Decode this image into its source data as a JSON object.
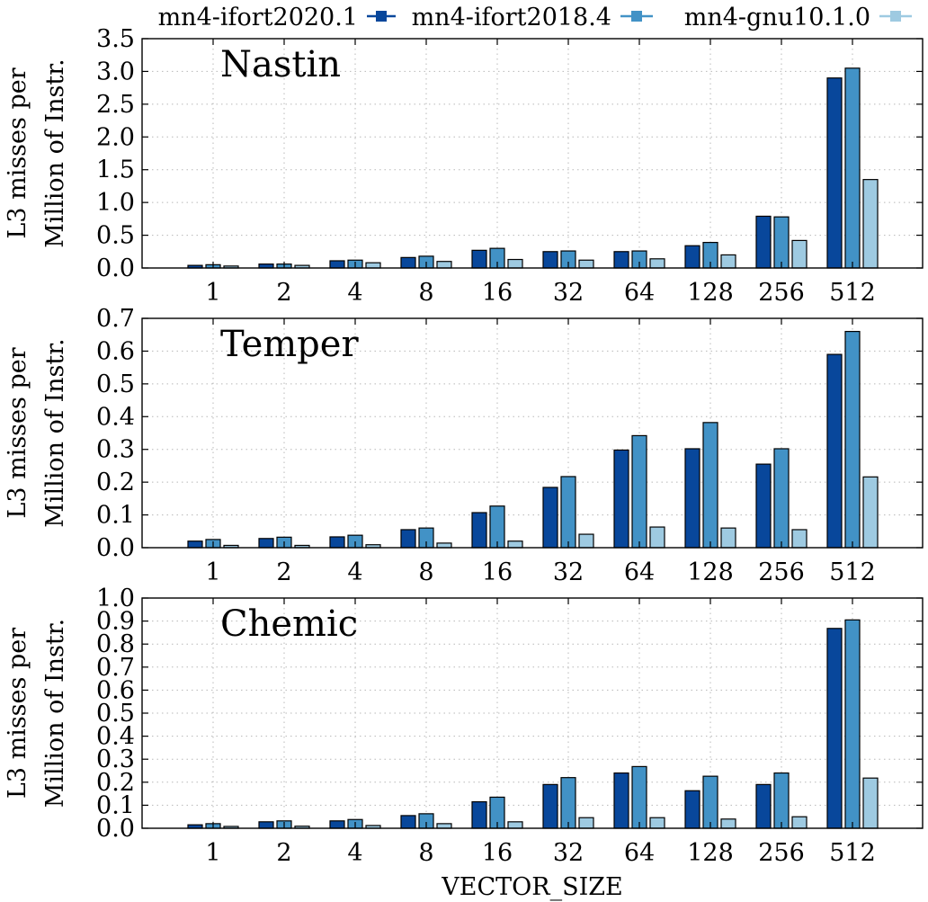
{
  "chart_data": {
    "type": "bar",
    "xlabel": "VECTOR_SIZE",
    "ylabel": [
      "L3 misses per",
      "Million of Instr."
    ],
    "categories": [
      "1",
      "2",
      "4",
      "8",
      "16",
      "32",
      "64",
      "128",
      "256",
      "512"
    ],
    "legend": {
      "placement": "top",
      "entries": [
        {
          "name": "mn4-ifort2020.1",
          "color": "#08479b"
        },
        {
          "name": "mn4-ifort2018.4",
          "color": "#4292c6"
        },
        {
          "name": "mn4-gnu10.1.0",
          "color": "#9ecae1"
        }
      ]
    },
    "panels": [
      {
        "title": "Nastin",
        "ylim": [
          0,
          3.5
        ],
        "yticks": [
          "0.0",
          "0.5",
          "1.0",
          "1.5",
          "2.0",
          "2.5",
          "3.0",
          "3.5"
        ],
        "series": [
          {
            "name": "mn4-ifort2020.1",
            "values": [
              0.04,
              0.06,
              0.11,
              0.16,
              0.27,
              0.25,
              0.25,
              0.34,
              0.79,
              2.9
            ]
          },
          {
            "name": "mn4-ifort2018.4",
            "values": [
              0.05,
              0.06,
              0.12,
              0.18,
              0.3,
              0.26,
              0.26,
              0.39,
              0.78,
              3.05
            ]
          },
          {
            "name": "mn4-gnu10.1.0",
            "values": [
              0.03,
              0.04,
              0.08,
              0.1,
              0.13,
              0.12,
              0.14,
              0.2,
              0.42,
              1.35
            ]
          }
        ]
      },
      {
        "title": "Temper",
        "ylim": [
          0,
          0.7
        ],
        "yticks": [
          "0.0",
          "0.1",
          "0.2",
          "0.3",
          "0.4",
          "0.5",
          "0.6",
          "0.7"
        ],
        "series": [
          {
            "name": "mn4-ifort2020.1",
            "values": [
              0.02,
              0.028,
              0.033,
              0.055,
              0.107,
              0.184,
              0.298,
              0.302,
              0.255,
              0.59
            ]
          },
          {
            "name": "mn4-ifort2018.4",
            "values": [
              0.025,
              0.032,
              0.038,
              0.06,
              0.127,
              0.217,
              0.342,
              0.382,
              0.302,
              0.66
            ]
          },
          {
            "name": "mn4-gnu10.1.0",
            "values": [
              0.007,
              0.007,
              0.009,
              0.014,
              0.02,
              0.041,
              0.063,
              0.06,
              0.055,
              0.216
            ]
          }
        ]
      },
      {
        "title": "Chemic",
        "ylim": [
          0,
          1.0
        ],
        "yticks": [
          "0.0",
          "0.1",
          "0.2",
          "0.3",
          "0.4",
          "0.5",
          "0.6",
          "0.7",
          "0.8",
          "0.9",
          "1.0"
        ],
        "series": [
          {
            "name": "mn4-ifort2020.1",
            "values": [
              0.015,
              0.028,
              0.032,
              0.055,
              0.115,
              0.19,
              0.24,
              0.163,
              0.19,
              0.868
            ]
          },
          {
            "name": "mn4-ifort2018.4",
            "values": [
              0.02,
              0.032,
              0.038,
              0.063,
              0.135,
              0.22,
              0.268,
              0.226,
              0.24,
              0.905
            ]
          },
          {
            "name": "mn4-gnu10.1.0",
            "values": [
              0.008,
              0.009,
              0.012,
              0.02,
              0.028,
              0.046,
              0.046,
              0.04,
              0.05,
              0.218
            ]
          }
        ]
      }
    ]
  }
}
